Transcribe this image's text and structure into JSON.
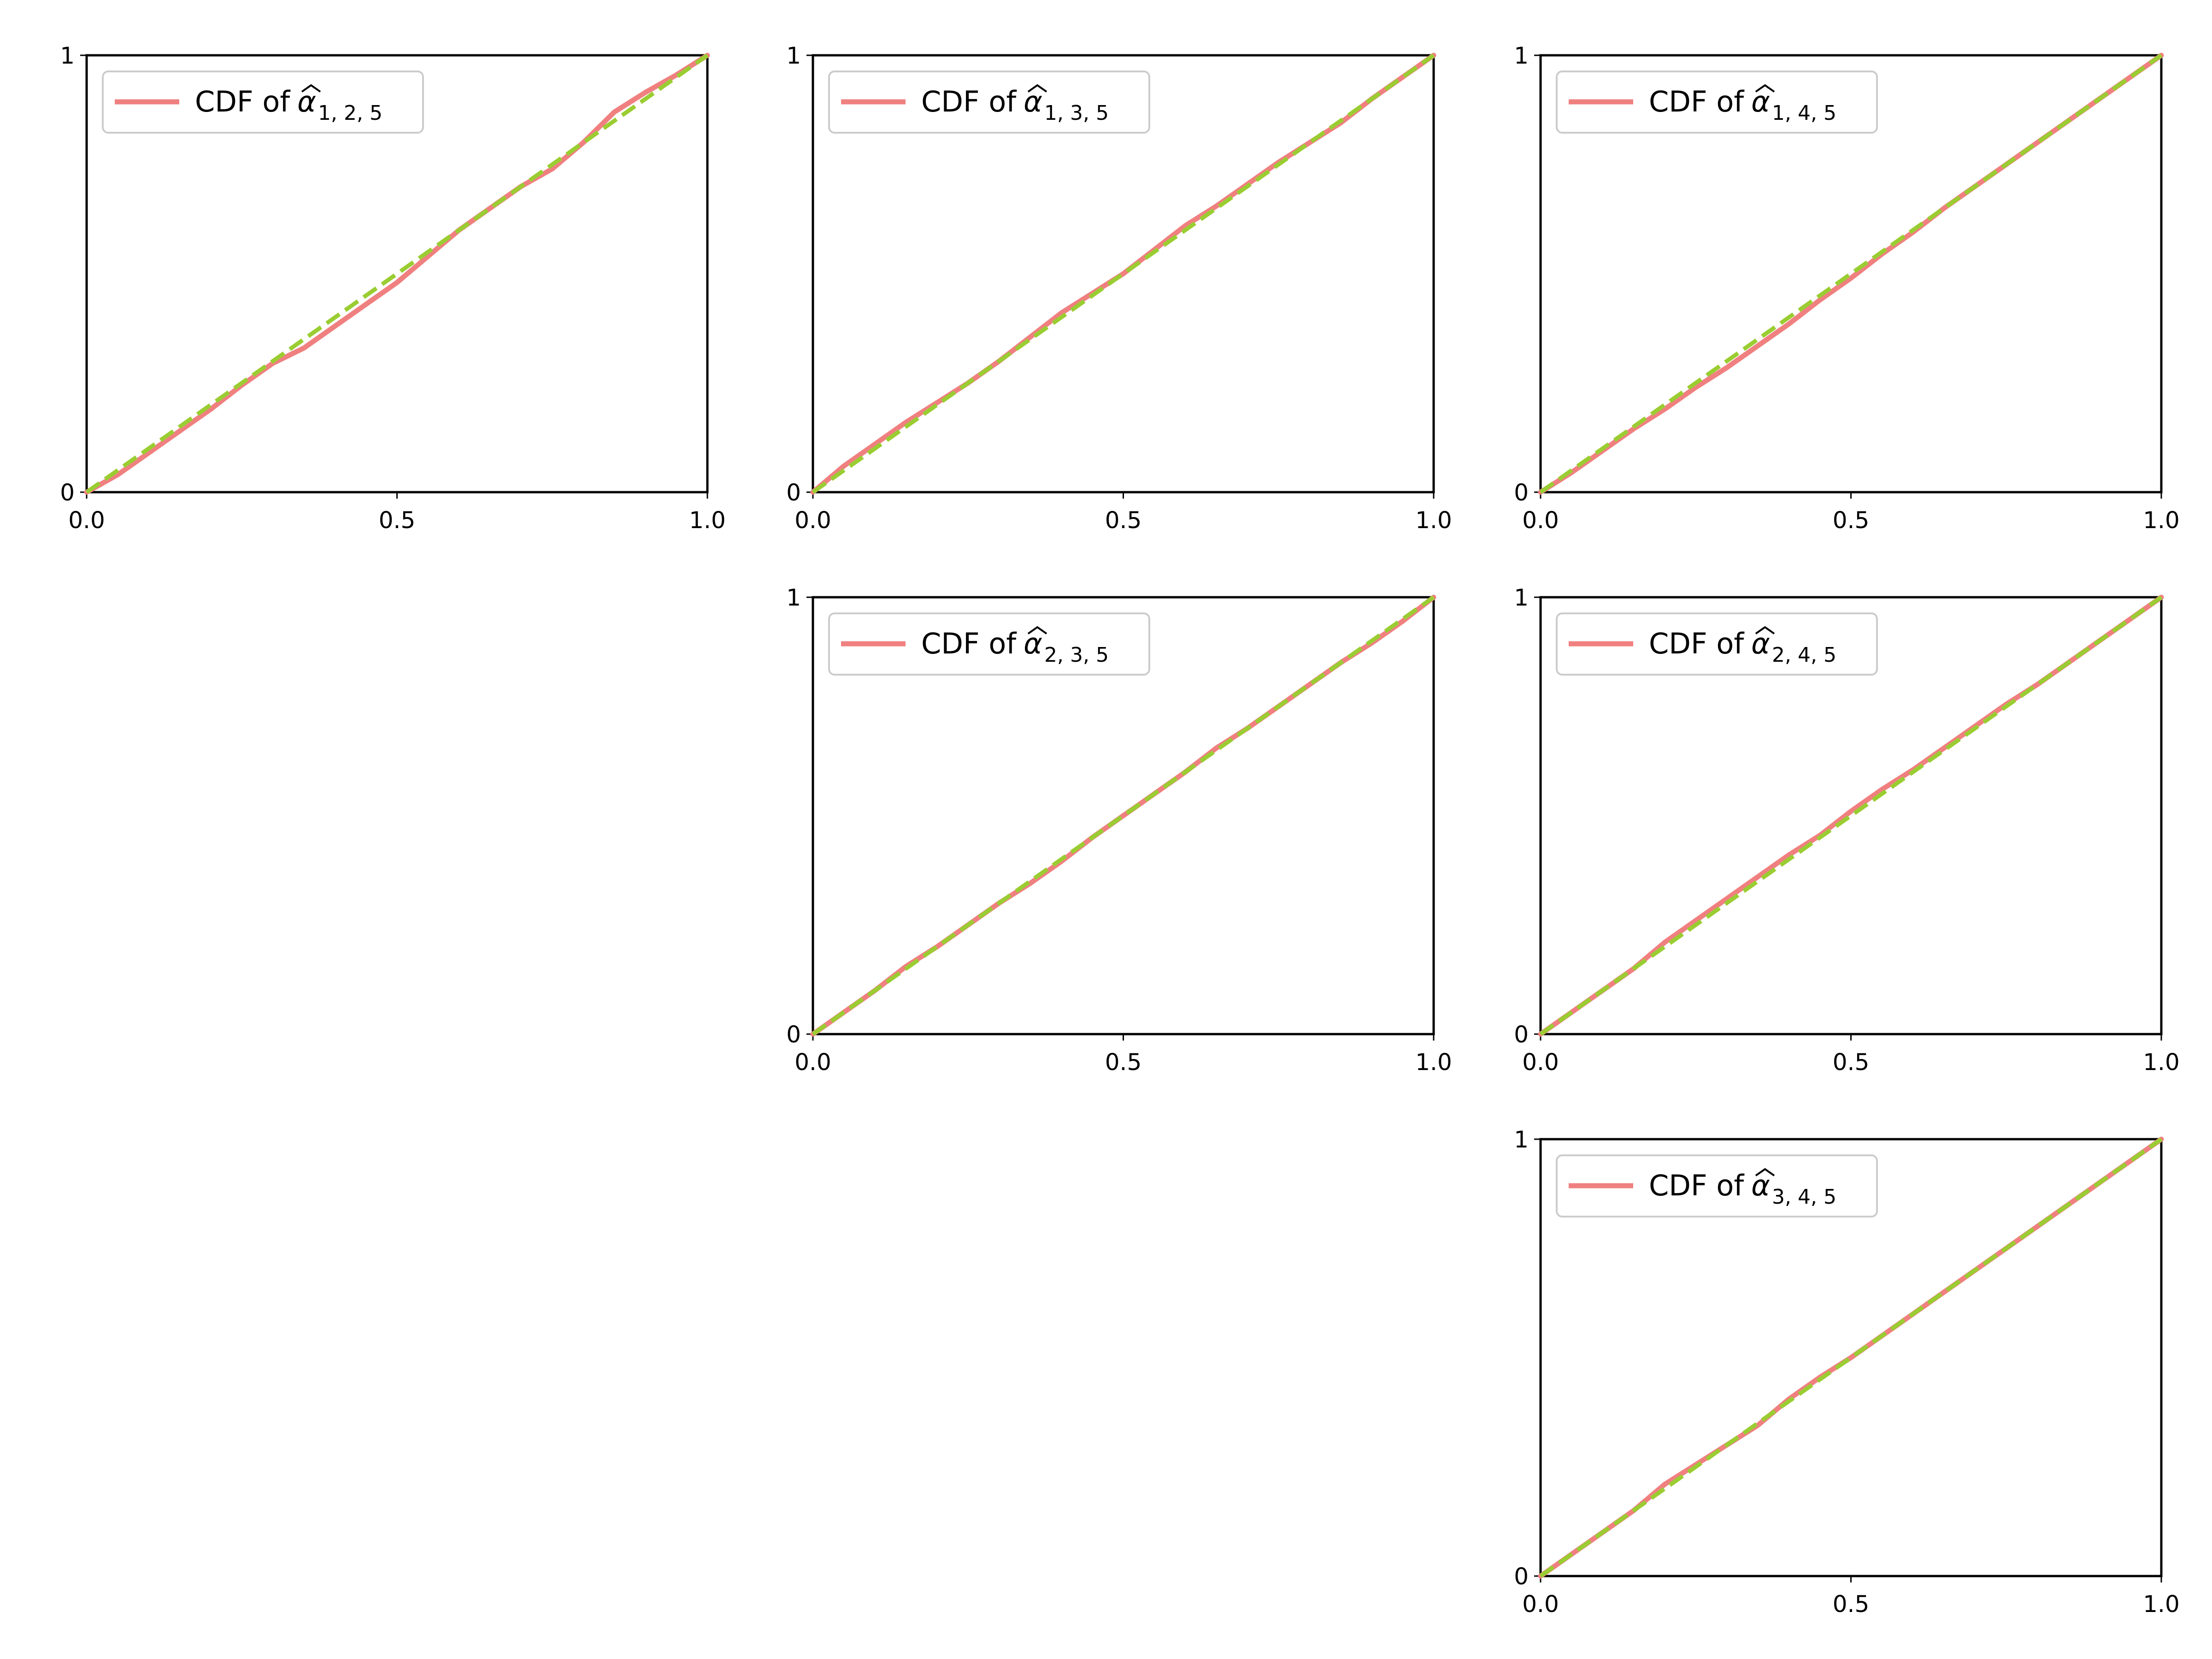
{
  "colors": {
    "empirical_cdf": "#f08080",
    "uniform_reference": "#9acd32",
    "axes": "#000000",
    "legend_border": "#cccccc",
    "background": "#ffffff"
  },
  "chart_data": [
    {
      "type": "line",
      "grid_row": 1,
      "grid_col": 1,
      "title": "",
      "xlabel": "",
      "ylabel": "",
      "xlim": [
        0,
        1
      ],
      "ylim": [
        0,
        1
      ],
      "xticks": [
        "0.0",
        "0.5",
        "1.0"
      ],
      "yticks": [
        "0",
        "1"
      ],
      "grid": false,
      "legend_placement": "upper-left",
      "legend_label": "CDF of α̂_{1,2,5}",
      "legend_text": "CDF of",
      "legend_symbol": "α",
      "legend_subscript": "1, 2, 5",
      "series": [
        {
          "name": "CDF of α̂_{1,2,5}",
          "style": "solid",
          "x": [
            0,
            0.05,
            0.1,
            0.15,
            0.2,
            0.25,
            0.3,
            0.35,
            0.4,
            0.45,
            0.5,
            0.55,
            0.6,
            0.65,
            0.7,
            0.75,
            0.8,
            0.85,
            0.9,
            0.95,
            1.0
          ],
          "y": [
            0,
            0.04,
            0.09,
            0.14,
            0.19,
            0.245,
            0.295,
            0.33,
            0.38,
            0.43,
            0.48,
            0.54,
            0.6,
            0.65,
            0.7,
            0.74,
            0.8,
            0.87,
            0.915,
            0.955,
            1.0
          ]
        },
        {
          "style": "dashed",
          "x": [
            0,
            1
          ],
          "y": [
            0,
            1
          ]
        }
      ]
    },
    {
      "type": "line",
      "grid_row": 1,
      "grid_col": 2,
      "title": "",
      "xlabel": "",
      "ylabel": "",
      "xlim": [
        0,
        1
      ],
      "ylim": [
        0,
        1
      ],
      "xticks": [
        "0.0",
        "0.5",
        "1.0"
      ],
      "yticks": [
        "0",
        "1"
      ],
      "grid": false,
      "legend_placement": "upper-left",
      "legend_label": "CDF of α̂_{1,3,5}",
      "legend_text": "CDF of",
      "legend_symbol": "α",
      "legend_subscript": "1, 3, 5",
      "series": [
        {
          "name": "CDF of α̂_{1,3,5}",
          "style": "solid",
          "x": [
            0,
            0.05,
            0.1,
            0.15,
            0.2,
            0.25,
            0.3,
            0.35,
            0.4,
            0.45,
            0.5,
            0.55,
            0.6,
            0.65,
            0.7,
            0.75,
            0.8,
            0.85,
            0.9,
            0.95,
            1.0
          ],
          "y": [
            0,
            0.06,
            0.11,
            0.16,
            0.205,
            0.25,
            0.3,
            0.355,
            0.41,
            0.455,
            0.5,
            0.555,
            0.61,
            0.655,
            0.705,
            0.755,
            0.8,
            0.845,
            0.9,
            0.95,
            1.0
          ]
        },
        {
          "style": "dashed",
          "x": [
            0,
            1
          ],
          "y": [
            0,
            1
          ]
        }
      ]
    },
    {
      "type": "line",
      "grid_row": 1,
      "grid_col": 3,
      "title": "",
      "xlabel": "",
      "ylabel": "",
      "xlim": [
        0,
        1
      ],
      "ylim": [
        0,
        1
      ],
      "xticks": [
        "0.0",
        "0.5",
        "1.0"
      ],
      "yticks": [
        "0",
        "1"
      ],
      "grid": false,
      "legend_placement": "upper-left",
      "legend_label": "CDF of α̂_{1,4,5}",
      "legend_text": "CDF of",
      "legend_symbol": "α",
      "legend_subscript": "1, 4, 5",
      "series": [
        {
          "name": "CDF of α̂_{1,4,5}",
          "style": "solid",
          "x": [
            0,
            0.05,
            0.1,
            0.15,
            0.2,
            0.25,
            0.3,
            0.35,
            0.4,
            0.45,
            0.5,
            0.55,
            0.6,
            0.65,
            0.7,
            0.75,
            0.8,
            0.85,
            0.9,
            0.95,
            1.0
          ],
          "y": [
            0,
            0.045,
            0.095,
            0.145,
            0.19,
            0.24,
            0.285,
            0.335,
            0.385,
            0.44,
            0.49,
            0.545,
            0.595,
            0.65,
            0.7,
            0.75,
            0.8,
            0.85,
            0.9,
            0.95,
            1.0
          ]
        },
        {
          "style": "dashed",
          "x": [
            0,
            1
          ],
          "y": [
            0,
            1
          ]
        }
      ]
    },
    {
      "type": "line",
      "grid_row": 2,
      "grid_col": 2,
      "title": "",
      "xlabel": "",
      "ylabel": "",
      "xlim": [
        0,
        1
      ],
      "ylim": [
        0,
        1
      ],
      "xticks": [
        "0.0",
        "0.5",
        "1.0"
      ],
      "yticks": [
        "0",
        "1"
      ],
      "grid": false,
      "legend_placement": "upper-left",
      "legend_label": "CDF of α̂_{2,3,5}",
      "legend_text": "CDF of",
      "legend_symbol": "α",
      "legend_subscript": "2, 3, 5",
      "series": [
        {
          "name": "CDF of α̂_{2,3,5}",
          "style": "solid",
          "x": [
            0,
            0.05,
            0.1,
            0.15,
            0.2,
            0.25,
            0.3,
            0.35,
            0.4,
            0.45,
            0.5,
            0.55,
            0.6,
            0.65,
            0.7,
            0.75,
            0.8,
            0.85,
            0.9,
            0.95,
            1.0
          ],
          "y": [
            0,
            0.05,
            0.1,
            0.155,
            0.2,
            0.25,
            0.3,
            0.345,
            0.395,
            0.45,
            0.5,
            0.55,
            0.6,
            0.655,
            0.7,
            0.75,
            0.8,
            0.85,
            0.895,
            0.945,
            1.0
          ]
        },
        {
          "style": "dashed",
          "x": [
            0,
            1
          ],
          "y": [
            0,
            1
          ]
        }
      ]
    },
    {
      "type": "line",
      "grid_row": 2,
      "grid_col": 3,
      "title": "",
      "xlabel": "",
      "ylabel": "",
      "xlim": [
        0,
        1
      ],
      "ylim": [
        0,
        1
      ],
      "xticks": [
        "0.0",
        "0.5",
        "1.0"
      ],
      "yticks": [
        "0",
        "1"
      ],
      "grid": false,
      "legend_placement": "upper-left",
      "legend_label": "CDF of α̂_{2,4,5}",
      "legend_text": "CDF of",
      "legend_symbol": "α",
      "legend_subscript": "2, 4, 5",
      "series": [
        {
          "name": "CDF of α̂_{2,4,5}",
          "style": "solid",
          "x": [
            0,
            0.05,
            0.1,
            0.15,
            0.2,
            0.25,
            0.3,
            0.35,
            0.4,
            0.45,
            0.5,
            0.55,
            0.6,
            0.65,
            0.7,
            0.75,
            0.8,
            0.85,
            0.9,
            0.95,
            1.0
          ],
          "y": [
            0,
            0.05,
            0.1,
            0.15,
            0.21,
            0.26,
            0.31,
            0.36,
            0.41,
            0.455,
            0.51,
            0.56,
            0.605,
            0.655,
            0.705,
            0.755,
            0.8,
            0.85,
            0.9,
            0.95,
            1.0
          ]
        },
        {
          "style": "dashed",
          "x": [
            0,
            1
          ],
          "y": [
            0,
            1
          ]
        }
      ]
    },
    {
      "type": "line",
      "grid_row": 3,
      "grid_col": 3,
      "title": "",
      "xlabel": "",
      "ylabel": "",
      "xlim": [
        0,
        1
      ],
      "ylim": [
        0,
        1
      ],
      "xticks": [
        "0.0",
        "0.5",
        "1.0"
      ],
      "yticks": [
        "0",
        "1"
      ],
      "grid": false,
      "legend_placement": "upper-left",
      "legend_label": "CDF of α̂_{3,4,5}",
      "legend_text": "CDF of",
      "legend_symbol": "α",
      "legend_subscript": "3, 4, 5",
      "series": [
        {
          "name": "CDF of α̂_{3,4,5}",
          "style": "solid",
          "x": [
            0,
            0.05,
            0.1,
            0.15,
            0.2,
            0.25,
            0.3,
            0.35,
            0.4,
            0.45,
            0.5,
            0.55,
            0.6,
            0.65,
            0.7,
            0.75,
            0.8,
            0.85,
            0.9,
            0.95,
            1.0
          ],
          "y": [
            0,
            0.05,
            0.1,
            0.15,
            0.21,
            0.255,
            0.3,
            0.345,
            0.405,
            0.455,
            0.5,
            0.55,
            0.6,
            0.65,
            0.7,
            0.75,
            0.8,
            0.85,
            0.9,
            0.95,
            1.0
          ]
        },
        {
          "style": "dashed",
          "x": [
            0,
            1
          ],
          "y": [
            0,
            1
          ]
        }
      ]
    }
  ]
}
